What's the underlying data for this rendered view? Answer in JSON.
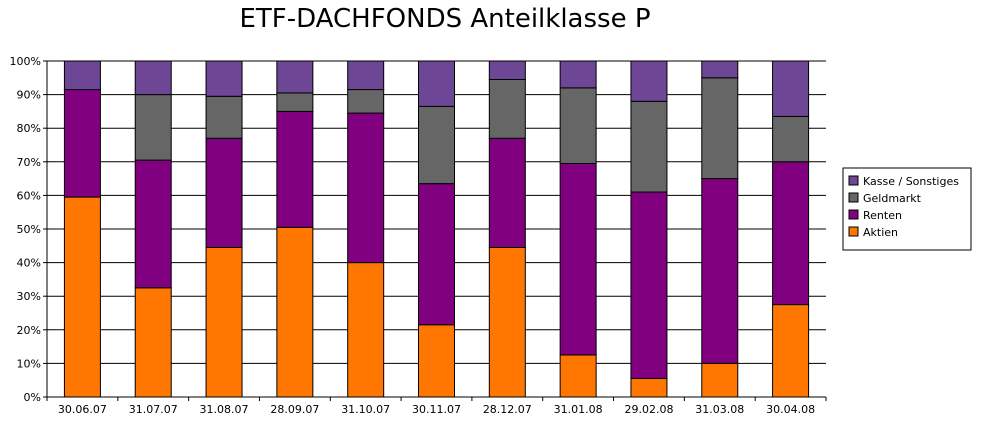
{
  "chart_data": {
    "type": "bar",
    "stacked": true,
    "normalized": true,
    "title": "ETF-DACHFONDS Anteilklasse P",
    "xlabel": "",
    "ylabel": "",
    "ylim": [
      0,
      100
    ],
    "y_ticks": [
      "0%",
      "10%",
      "20%",
      "30%",
      "40%",
      "50%",
      "60%",
      "70%",
      "80%",
      "90%",
      "100%"
    ],
    "grid": true,
    "legend_position": "right",
    "categories": [
      "30.06.07",
      "31.07.07",
      "31.08.07",
      "28.09.07",
      "31.10.07",
      "30.11.07",
      "28.12.07",
      "31.01.08",
      "29.02.08",
      "31.03.08",
      "30.04.08"
    ],
    "series": [
      {
        "name": "Aktien",
        "color": "#ff7700",
        "values": [
          59.5,
          32.5,
          44.5,
          50.5,
          40,
          21.5,
          44.5,
          12.5,
          5.5,
          10,
          27.5
        ]
      },
      {
        "name": "Renten",
        "color": "#800080",
        "values": [
          32,
          38,
          32.5,
          34.5,
          44.5,
          42,
          32.5,
          57,
          55.5,
          55,
          42.5
        ]
      },
      {
        "name": "Geldmarkt",
        "color": "#666666",
        "values": [
          0,
          19.5,
          12.5,
          5.5,
          7,
          23,
          17.5,
          22.5,
          27,
          30,
          13.5
        ]
      },
      {
        "name": "Kasse / Sonstiges",
        "color": "#6d4796",
        "values": [
          8.5,
          10,
          10.5,
          9.5,
          8.5,
          13.5,
          5.5,
          8,
          12,
          5,
          16.5
        ]
      }
    ],
    "legend_order": [
      "Kasse / Sonstiges",
      "Geldmarkt",
      "Renten",
      "Aktien"
    ]
  }
}
